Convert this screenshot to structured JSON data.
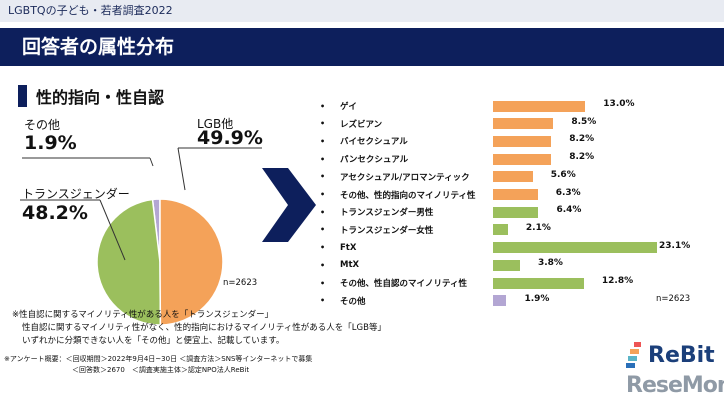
{
  "header": {
    "subtitle": "LGBTQの子ども・若者調査2022",
    "title": "回答者の属性分布"
  },
  "section": {
    "title": "性的指向・性自認"
  },
  "pie": {
    "n": "n=2623",
    "slices": [
      {
        "label": "LGB他",
        "value": "49.9%",
        "pct": 49.9,
        "color": "#f4a259"
      },
      {
        "label": "トランスジェンダー",
        "value": "48.2%",
        "pct": 48.2,
        "color": "#9bbf5d"
      },
      {
        "label": "その他",
        "value": "1.9%",
        "pct": 1.9,
        "color": "#b3a6d3"
      }
    ]
  },
  "bars": {
    "n": "n=2623",
    "items": [
      {
        "label": "ゲイ",
        "value": "13.0%",
        "pct": 13.0,
        "color": "#f4a259"
      },
      {
        "label": "レズビアン",
        "value": "8.5%",
        "pct": 8.5,
        "color": "#f4a259"
      },
      {
        "label": "バイセクシュアル",
        "value": "8.2%",
        "pct": 8.2,
        "color": "#f4a259"
      },
      {
        "label": "パンセクシュアル",
        "value": "8.2%",
        "pct": 8.2,
        "color": "#f4a259"
      },
      {
        "label": "アセクシュアル/アロマンティック",
        "value": "5.6%",
        "pct": 5.6,
        "color": "#f4a259"
      },
      {
        "label": "その他、性的指向のマイノリティ性",
        "value": "6.3%",
        "pct": 6.3,
        "color": "#f4a259"
      },
      {
        "label": "トランスジェンダー男性",
        "value": "6.4%",
        "pct": 6.4,
        "color": "#9bbf5d"
      },
      {
        "label": "トランスジェンダー女性",
        "value": "2.1%",
        "pct": 2.1,
        "color": "#9bbf5d"
      },
      {
        "label": "FtX",
        "value": "23.1%",
        "pct": 23.1,
        "color": "#9bbf5d"
      },
      {
        "label": "MtX",
        "value": "3.8%",
        "pct": 3.8,
        "color": "#9bbf5d"
      },
      {
        "label": "その他、性自認のマイノリティ性",
        "value": "12.8%",
        "pct": 12.8,
        "color": "#9bbf5d"
      },
      {
        "label": "その他",
        "value": "1.9%",
        "pct": 1.9,
        "color": "#b3a6d3"
      }
    ]
  },
  "notes": [
    "※性自認に関するマイノリティ性がある人を「トランスジェンダー」",
    "性自認に関するマイノリティ性がなく、性的指向におけるマイノリティ性がある人を「LGB等」",
    "いずれかに分類できない人を「その他」と便宜上、記載しています。"
  ],
  "survey": [
    "※アンケート概要：＜回収期間＞2022年9月4日~30日 ＜調査方法＞SNS等インターネットで募集",
    "＜回答数＞2670　＜調査実施主体＞認定NPO法人ReBit"
  ],
  "logos": {
    "rebit": "ReBit",
    "resemom": "ReseMom"
  }
}
